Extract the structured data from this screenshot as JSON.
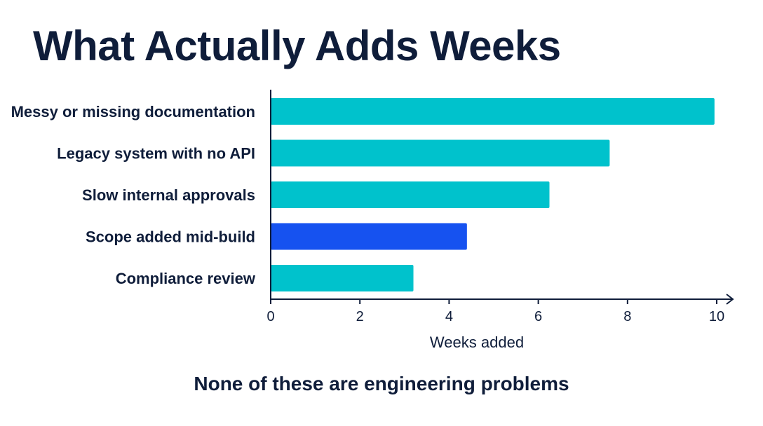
{
  "slide": {
    "title": "What Actually Adds Weeks",
    "footnote": "None of these are engineering problems"
  },
  "chart_data": {
    "type": "bar",
    "orientation": "horizontal",
    "categories": [
      "Messy or missing documentation",
      "Legacy system with no API",
      "Slow internal approvals",
      "Scope added mid-build",
      "Compliance review"
    ],
    "values": [
      9.95,
      7.6,
      6.25,
      4.4,
      3.2
    ],
    "highlight_index": 3,
    "xlabel": "Weeks added",
    "ylabel": "",
    "xlim": [
      0,
      10
    ],
    "xticks": [
      0,
      2,
      4,
      6,
      8,
      10
    ],
    "grid": false,
    "colors": {
      "bar": "#00c2cc",
      "highlight": "#1652f0",
      "axis": "#0f1d3a",
      "text": "#0f1d3a"
    }
  }
}
